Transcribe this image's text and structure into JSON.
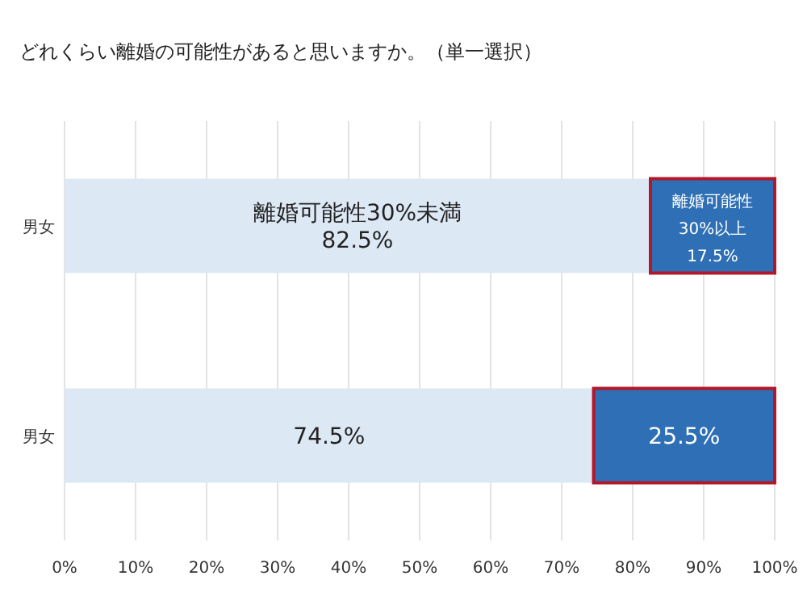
{
  "chart_data": {
    "type": "bar",
    "orientation": "horizontal",
    "stacked": true,
    "title": "どれくらい離婚の可能性があると思いますか。（単一選択）",
    "categories": [
      "男女",
      "男女"
    ],
    "series": [
      {
        "color": "#dde8f5",
        "values": [
          82.5,
          74.5
        ],
        "value_labels": [
          "離婚可能性30%未満\n82.5%",
          "74.5%"
        ]
      },
      {
        "color": "#2e6fb5",
        "values": [
          17.5,
          25.5
        ],
        "value_labels": [
          "離婚可能性\n30%以上\n17.5%",
          "25.5%"
        ]
      }
    ],
    "xlim": [
      0,
      100
    ],
    "xticks": [
      {
        "value": 0,
        "label": "0%"
      },
      {
        "value": 10,
        "label": "10%"
      },
      {
        "value": 20,
        "label": "20%"
      },
      {
        "value": 30,
        "label": "30%"
      },
      {
        "value": 40,
        "label": "40%"
      },
      {
        "value": 50,
        "label": "50%"
      },
      {
        "value": 60,
        "label": "60%"
      },
      {
        "value": 70,
        "label": "70%"
      },
      {
        "value": 80,
        "label": "80%"
      },
      {
        "value": 90,
        "label": "90%"
      },
      {
        "value": 100,
        "label": "100%"
      }
    ],
    "grid": "x"
  }
}
